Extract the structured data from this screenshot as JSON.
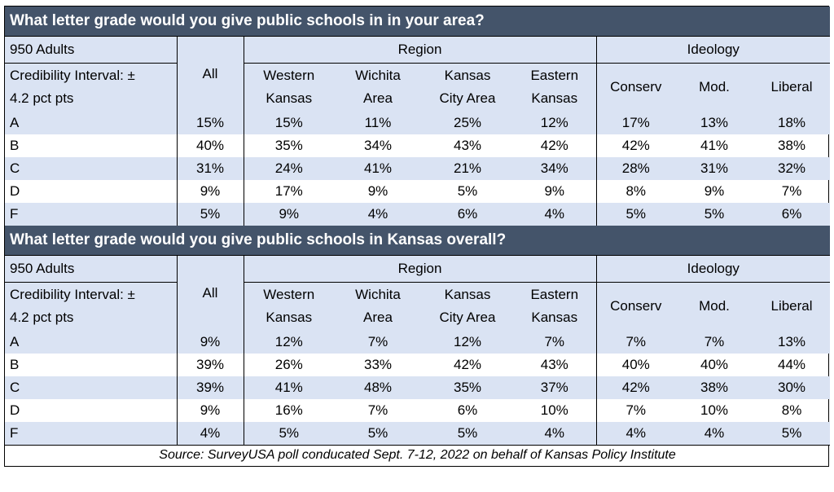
{
  "tables": [
    {
      "title": "What letter grade would you give public schools in in your area?",
      "sample": "950 Adults",
      "ci_line1": "Credibility Interval: ±",
      "ci_line2": "4.2 pct pts",
      "all_label": "All",
      "region_label": "Region",
      "ideology_label": "Ideology",
      "columns": [
        {
          "l1": "Western",
          "l2": "Kansas"
        },
        {
          "l1": "Wichita",
          "l2": "Area"
        },
        {
          "l1": "Kansas",
          "l2": "City Area"
        },
        {
          "l1": "Eastern",
          "l2": "Kansas"
        },
        {
          "l1": "Conserv",
          "l2": ""
        },
        {
          "l1": "Mod.",
          "l2": ""
        },
        {
          "l1": "Liberal",
          "l2": ""
        }
      ],
      "rows": [
        {
          "grade": "A",
          "values": [
            "15%",
            "15%",
            "11%",
            "25%",
            "12%",
            "17%",
            "13%",
            "18%"
          ]
        },
        {
          "grade": "B",
          "values": [
            "40%",
            "35%",
            "34%",
            "43%",
            "42%",
            "42%",
            "41%",
            "38%"
          ]
        },
        {
          "grade": "C",
          "values": [
            "31%",
            "24%",
            "41%",
            "21%",
            "34%",
            "28%",
            "31%",
            "32%"
          ]
        },
        {
          "grade": "D",
          "values": [
            "9%",
            "17%",
            "9%",
            "5%",
            "9%",
            "8%",
            "9%",
            "7%"
          ]
        },
        {
          "grade": "F",
          "values": [
            "5%",
            "9%",
            "4%",
            "6%",
            "4%",
            "5%",
            "5%",
            "6%"
          ]
        }
      ]
    },
    {
      "title": "What letter grade would you give public schools in Kansas overall?",
      "sample": "950 Adults",
      "ci_line1": "Credibility Interval: ±",
      "ci_line2": "4.2 pct pts",
      "all_label": "All",
      "region_label": "Region",
      "ideology_label": "Ideology",
      "columns": [
        {
          "l1": "Western",
          "l2": "Kansas"
        },
        {
          "l1": "Wichita",
          "l2": "Area"
        },
        {
          "l1": "Kansas",
          "l2": "City Area"
        },
        {
          "l1": "Eastern",
          "l2": "Kansas"
        },
        {
          "l1": "Conserv",
          "l2": ""
        },
        {
          "l1": "Mod.",
          "l2": ""
        },
        {
          "l1": "Liberal",
          "l2": ""
        }
      ],
      "rows": [
        {
          "grade": "A",
          "values": [
            "9%",
            "12%",
            "7%",
            "12%",
            "7%",
            "7%",
            "7%",
            "13%"
          ]
        },
        {
          "grade": "B",
          "values": [
            "39%",
            "26%",
            "33%",
            "42%",
            "43%",
            "40%",
            "40%",
            "44%"
          ]
        },
        {
          "grade": "C",
          "values": [
            "39%",
            "41%",
            "48%",
            "35%",
            "37%",
            "42%",
            "38%",
            "30%"
          ]
        },
        {
          "grade": "D",
          "values": [
            "9%",
            "16%",
            "7%",
            "6%",
            "10%",
            "7%",
            "10%",
            "8%"
          ]
        },
        {
          "grade": "F",
          "values": [
            "4%",
            "5%",
            "5%",
            "5%",
            "4%",
            "4%",
            "4%",
            "5%"
          ]
        }
      ]
    }
  ],
  "source": "Source: SurveyUSA poll conducated Sept. 7-12, 2022 on behalf of Kansas Policy Institute",
  "colors": {
    "title_bg": "#44546A",
    "header_bg": "#DAE3F3",
    "band_bg": "#DAE3F3"
  }
}
